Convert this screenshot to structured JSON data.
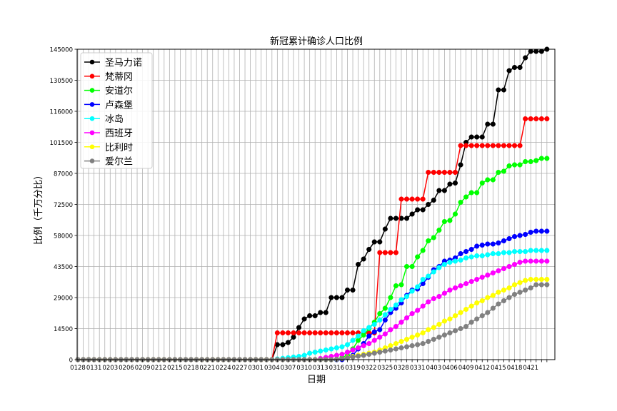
{
  "chart_data": {
    "type": "line",
    "title": "新冠累计确诊人口比例",
    "xlabel": "日期",
    "ylabel": "比例（千万分比）",
    "ylim": [
      0,
      145000
    ],
    "yticks": [
      0,
      14500,
      29000,
      43500,
      58000,
      72500,
      87000,
      101500,
      116000,
      130500,
      145000
    ],
    "grid": true,
    "legend_position": "top-left",
    "xtick_labels": [
      "0128",
      "0131",
      "0203",
      "0206",
      "0209",
      "0212",
      "0215",
      "0218",
      "0221",
      "0224",
      "0227",
      "0301",
      "0304",
      "0307",
      "0310",
      "0313",
      "0316",
      "0319",
      "0322",
      "0325",
      "0328",
      "0331",
      "0403",
      "0406",
      "0409",
      "0412",
      "0415",
      "0418",
      "0421"
    ],
    "dates": [
      "0128",
      "0129",
      "0130",
      "0131",
      "0201",
      "0202",
      "0203",
      "0204",
      "0205",
      "0206",
      "0207",
      "0208",
      "0209",
      "0210",
      "0211",
      "0212",
      "0213",
      "0214",
      "0215",
      "0216",
      "0217",
      "0218",
      "0219",
      "0220",
      "0221",
      "0222",
      "0223",
      "0224",
      "0225",
      "0226",
      "0227",
      "0228",
      "0229",
      "0301",
      "0302",
      "0303",
      "0304",
      "0305",
      "0306",
      "0307",
      "0308",
      "0309",
      "0310",
      "0311",
      "0312",
      "0313",
      "0314",
      "0315",
      "0316",
      "0317",
      "0318",
      "0319",
      "0320",
      "0321",
      "0322",
      "0323",
      "0324",
      "0325",
      "0326",
      "0327",
      "0328",
      "0329",
      "0330",
      "0331",
      "0401",
      "0402",
      "0403",
      "0404",
      "0405",
      "0406",
      "0407",
      "0408",
      "0409",
      "0410",
      "0411",
      "0412",
      "0413",
      "0414",
      "0415",
      "0416",
      "0417",
      "0418",
      "0419",
      "0420",
      "0421",
      "0422",
      "0423",
      "0424"
    ],
    "series": [
      {
        "name": "圣马力诺",
        "color": "#000000",
        "values": [
          0,
          0,
          0,
          0,
          0,
          0,
          0,
          0,
          0,
          0,
          0,
          0,
          0,
          0,
          0,
          0,
          0,
          0,
          0,
          0,
          0,
          0,
          0,
          0,
          0,
          0,
          0,
          0,
          0,
          0,
          0,
          0,
          0,
          0,
          0,
          0,
          0,
          7000,
          7000,
          8000,
          10500,
          15000,
          19000,
          20500,
          20500,
          22000,
          22000,
          29000,
          29000,
          29000,
          32500,
          32500,
          44500,
          47000,
          51500,
          55000,
          55000,
          61000,
          66000,
          66000,
          66000,
          66000,
          68000,
          70000,
          70000,
          72500,
          74500,
          79000,
          79000,
          82000,
          82500,
          91000,
          101500,
          104000,
          104000,
          104000,
          110000,
          110000,
          126000,
          126000,
          135000,
          136500,
          136500,
          141000,
          144000,
          144000,
          144000,
          145000
        ]
      },
      {
        "name": "梵蒂冈",
        "color": "#ff0000",
        "values": [
          0,
          0,
          0,
          0,
          0,
          0,
          0,
          0,
          0,
          0,
          0,
          0,
          0,
          0,
          0,
          0,
          0,
          0,
          0,
          0,
          0,
          0,
          0,
          0,
          0,
          0,
          0,
          0,
          0,
          0,
          0,
          0,
          0,
          0,
          0,
          0,
          0,
          12500,
          12500,
          12500,
          12500,
          12500,
          12500,
          12500,
          12500,
          12500,
          12500,
          12500,
          12500,
          12500,
          12500,
          12500,
          12500,
          12500,
          12500,
          12500,
          50000,
          50000,
          50000,
          50000,
          75000,
          75000,
          75000,
          75000,
          75000,
          87500,
          87500,
          87500,
          87500,
          87500,
          87500,
          100000,
          100000,
          100000,
          100000,
          100000,
          100000,
          100000,
          100000,
          100000,
          100000,
          100000,
          100000,
          112500,
          112500,
          112500,
          112500,
          112500
        ]
      },
      {
        "name": "安道尔",
        "color": "#00ff00",
        "values": [
          0,
          0,
          0,
          0,
          0,
          0,
          0,
          0,
          0,
          0,
          0,
          0,
          0,
          0,
          0,
          0,
          0,
          0,
          0,
          0,
          0,
          0,
          0,
          0,
          0,
          0,
          0,
          0,
          0,
          0,
          0,
          0,
          0,
          0,
          0,
          0,
          0,
          0,
          0,
          0,
          0,
          0,
          0,
          0,
          0,
          0,
          0,
          0,
          0,
          1000,
          2000,
          5000,
          9000,
          11500,
          14500,
          17500,
          21500,
          24000,
          29000,
          34500,
          35000,
          43500,
          43500,
          48000,
          51000,
          55500,
          57000,
          60500,
          64500,
          65000,
          68000,
          73500,
          76000,
          78000,
          78000,
          82500,
          84000,
          84000,
          87500,
          88000,
          90500,
          91000,
          91000,
          92500,
          92500,
          93000,
          94000,
          94000
        ]
      },
      {
        "name": "卢森堡",
        "color": "#0000ff",
        "values": [
          0,
          0,
          0,
          0,
          0,
          0,
          0,
          0,
          0,
          0,
          0,
          0,
          0,
          0,
          0,
          0,
          0,
          0,
          0,
          0,
          0,
          0,
          0,
          0,
          0,
          0,
          0,
          0,
          0,
          0,
          0,
          0,
          0,
          0,
          0,
          0,
          0,
          0,
          0,
          0,
          0,
          0,
          0,
          0,
          0,
          0,
          0,
          0,
          0,
          0,
          1000,
          2000,
          5000,
          7500,
          11000,
          13000,
          14000,
          18500,
          22000,
          24000,
          26500,
          30000,
          32500,
          33000,
          35500,
          38500,
          42000,
          43500,
          46000,
          46500,
          47500,
          49500,
          50500,
          51500,
          53000,
          53500,
          54000,
          54000,
          54500,
          55500,
          56500,
          57500,
          58000,
          58500,
          59500,
          60000,
          60000,
          60000
        ]
      },
      {
        "name": "冰岛",
        "color": "#00ffff",
        "values": [
          0,
          0,
          0,
          0,
          0,
          0,
          0,
          0,
          0,
          0,
          0,
          0,
          0,
          0,
          0,
          0,
          0,
          0,
          0,
          0,
          0,
          0,
          0,
          0,
          0,
          0,
          0,
          0,
          0,
          0,
          0,
          0,
          0,
          0,
          0,
          0,
          0,
          300,
          600,
          900,
          1200,
          1500,
          2000,
          3000,
          3500,
          4000,
          4500,
          5000,
          5500,
          6000,
          7000,
          9000,
          11000,
          13500,
          15000,
          16500,
          18500,
          21000,
          23500,
          25500,
          28000,
          29500,
          32000,
          34000,
          37500,
          39000,
          41000,
          43000,
          44500,
          45500,
          46000,
          46500,
          47500,
          48000,
          48500,
          48500,
          49000,
          49500,
          49500,
          50000,
          50000,
          50500,
          50500,
          50500,
          51000,
          51000,
          51000,
          51000
        ]
      },
      {
        "name": "西班牙",
        "color": "#ff00ff",
        "values": [
          0,
          0,
          0,
          0,
          0,
          0,
          0,
          0,
          0,
          0,
          0,
          0,
          0,
          0,
          0,
          0,
          0,
          0,
          0,
          0,
          0,
          0,
          0,
          0,
          0,
          0,
          0,
          0,
          0,
          0,
          0,
          0,
          0,
          0,
          0,
          0,
          0,
          0,
          0,
          0,
          0,
          0,
          0,
          0,
          0,
          500,
          1000,
          1500,
          2000,
          2500,
          3500,
          4500,
          5500,
          6500,
          7500,
          9000,
          10500,
          12000,
          14000,
          15500,
          17500,
          19500,
          21500,
          23000,
          25000,
          27000,
          28500,
          29500,
          31000,
          32500,
          33500,
          34500,
          35500,
          36500,
          37500,
          38500,
          39500,
          40500,
          41500,
          42500,
          43500,
          44500,
          45500,
          46000,
          46000,
          46000,
          46000,
          46000
        ]
      },
      {
        "name": "比利时",
        "color": "#ffff00",
        "values": [
          0,
          0,
          0,
          0,
          0,
          0,
          0,
          0,
          0,
          0,
          0,
          0,
          0,
          0,
          0,
          0,
          0,
          0,
          0,
          0,
          0,
          0,
          0,
          0,
          0,
          0,
          0,
          0,
          0,
          0,
          0,
          0,
          0,
          0,
          0,
          0,
          0,
          0,
          0,
          0,
          0,
          0,
          0,
          0,
          0,
          0,
          0,
          0,
          200,
          500,
          1000,
          1500,
          2000,
          2500,
          3000,
          3500,
          4500,
          5500,
          6500,
          7500,
          8500,
          9500,
          10500,
          11500,
          12500,
          14000,
          15000,
          16500,
          18000,
          19000,
          20500,
          22000,
          23500,
          25000,
          26500,
          27500,
          29000,
          30000,
          31500,
          32500,
          33500,
          35000,
          36000,
          37000,
          37500,
          37500,
          37500,
          37500
        ]
      },
      {
        "name": "爱尔兰",
        "color": "#808080",
        "values": [
          0,
          0,
          0,
          0,
          0,
          0,
          0,
          0,
          0,
          0,
          0,
          0,
          0,
          0,
          0,
          0,
          0,
          0,
          0,
          0,
          0,
          0,
          0,
          0,
          0,
          0,
          0,
          0,
          0,
          0,
          0,
          0,
          0,
          0,
          0,
          0,
          0,
          0,
          0,
          0,
          0,
          0,
          0,
          0,
          0,
          0,
          0,
          0,
          200,
          500,
          800,
          1200,
          1600,
          2000,
          2500,
          3000,
          3500,
          4000,
          4500,
          5000,
          5500,
          6000,
          6500,
          7000,
          7500,
          8500,
          9500,
          10500,
          11500,
          12500,
          13500,
          14500,
          15500,
          17500,
          19000,
          20500,
          22000,
          24000,
          26000,
          27500,
          29000,
          30500,
          31500,
          32500,
          33500,
          35000,
          35000,
          35000
        ]
      }
    ]
  }
}
